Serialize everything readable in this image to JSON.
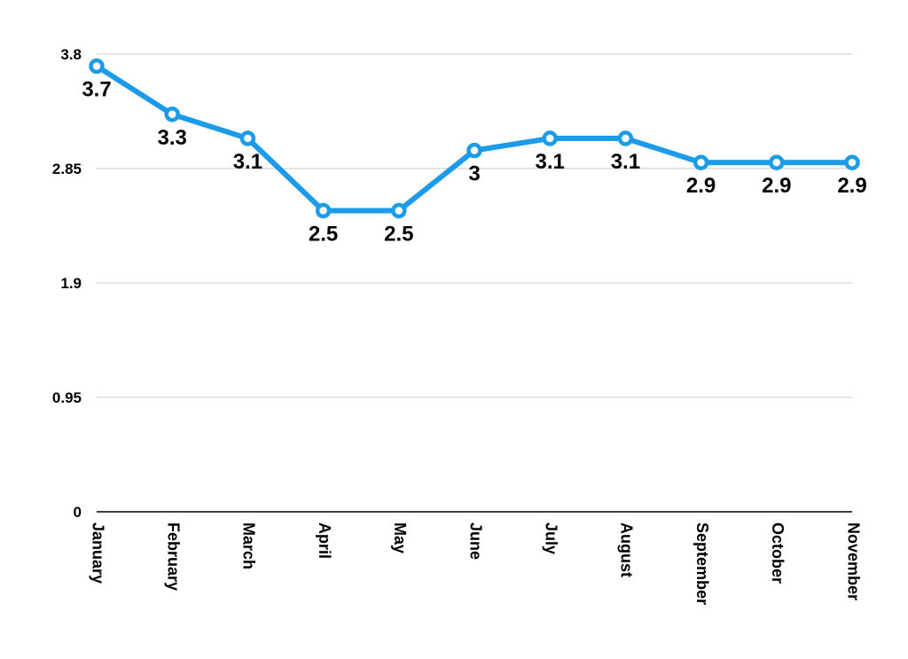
{
  "chart_data": {
    "type": "line",
    "title": "",
    "xlabel": "",
    "ylabel": "",
    "categories": [
      "January",
      "February",
      "March",
      "April",
      "May",
      "June",
      "July",
      "August",
      "September",
      "October",
      "November"
    ],
    "series": [
      {
        "values": [
          3.7,
          3.3,
          3.1,
          2.5,
          2.5,
          3,
          3.1,
          3.1,
          2.9,
          2.9,
          2.9
        ],
        "labels": [
          "3.7",
          "3.3",
          "3.1",
          "2.5",
          "2.5",
          "3",
          "3.1",
          "3.1",
          "2.9",
          "2.9",
          "2.9"
        ],
        "color": "#1c9be8"
      }
    ],
    "ylim": [
      0,
      3.8
    ],
    "y_ticks": [
      0,
      0.95,
      1.9,
      2.85,
      3.8
    ],
    "y_tick_labels": [
      "0",
      "0.95",
      "1.9",
      "2.85",
      "3.8"
    ],
    "grid": true,
    "legend": "none",
    "colors": {
      "gridline": "#c8c8c8",
      "axis": "#000000",
      "text": "#000000"
    }
  }
}
